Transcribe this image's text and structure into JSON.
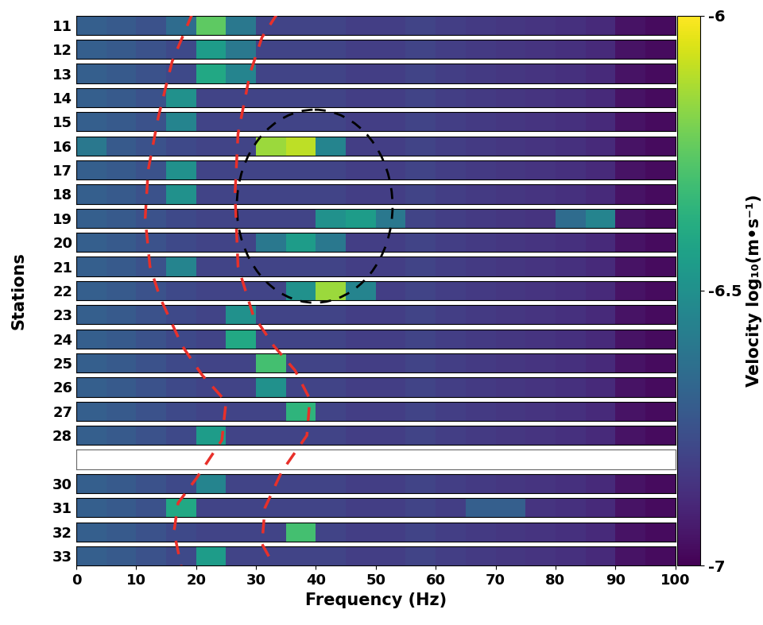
{
  "chart_data": {
    "type": "heatmap",
    "x_label": "Frequency (Hz)",
    "y_label": "Stations",
    "xlim": [
      0,
      100
    ],
    "xticks": [
      0,
      10,
      20,
      30,
      40,
      50,
      60,
      70,
      80,
      90,
      100
    ],
    "stations": [
      11,
      12,
      13,
      14,
      15,
      16,
      17,
      18,
      19,
      20,
      21,
      22,
      23,
      24,
      25,
      26,
      27,
      28,
      null,
      30,
      31,
      32,
      33
    ],
    "frequency_bins": [
      0,
      5,
      10,
      15,
      20,
      25,
      30,
      35,
      40,
      45,
      50,
      55,
      60,
      65,
      70,
      75,
      80,
      85,
      90,
      95,
      100
    ],
    "cells": [
      [
        -6.7,
        -6.72,
        -6.75,
        -6.65,
        -6.25,
        -6.6,
        -6.8,
        -6.8,
        -6.8,
        -6.82,
        -6.82,
        -6.8,
        -6.82,
        -6.83,
        -6.84,
        -6.85,
        -6.86,
        -6.88,
        -6.95,
        -6.97
      ],
      [
        -6.7,
        -6.72,
        -6.75,
        -6.78,
        -6.45,
        -6.6,
        -6.8,
        -6.8,
        -6.8,
        -6.82,
        -6.82,
        -6.8,
        -6.82,
        -6.83,
        -6.84,
        -6.85,
        -6.86,
        -6.88,
        -6.95,
        -6.97
      ],
      [
        -6.7,
        -6.72,
        -6.75,
        -6.78,
        -6.4,
        -6.55,
        -6.8,
        -6.8,
        -6.8,
        -6.82,
        -6.82,
        -6.8,
        -6.82,
        -6.83,
        -6.84,
        -6.85,
        -6.86,
        -6.88,
        -6.95,
        -6.97
      ],
      [
        -6.7,
        -6.72,
        -6.75,
        -6.5,
        -6.8,
        -6.8,
        -6.8,
        -6.8,
        -6.8,
        -6.82,
        -6.82,
        -6.8,
        -6.82,
        -6.83,
        -6.84,
        -6.85,
        -6.86,
        -6.88,
        -6.95,
        -6.97
      ],
      [
        -6.7,
        -6.72,
        -6.75,
        -6.55,
        -6.8,
        -6.8,
        -6.8,
        -6.8,
        -6.8,
        -6.82,
        -6.82,
        -6.8,
        -6.82,
        -6.83,
        -6.84,
        -6.85,
        -6.86,
        -6.88,
        -6.95,
        -6.97
      ],
      [
        -6.6,
        -6.72,
        -6.75,
        -6.78,
        -6.8,
        -6.8,
        -6.15,
        -6.1,
        -6.55,
        -6.82,
        -6.82,
        -6.8,
        -6.82,
        -6.83,
        -6.84,
        -6.85,
        -6.86,
        -6.88,
        -6.95,
        -6.97
      ],
      [
        -6.7,
        -6.72,
        -6.75,
        -6.5,
        -6.8,
        -6.8,
        -6.8,
        -6.8,
        -6.8,
        -6.82,
        -6.82,
        -6.8,
        -6.82,
        -6.83,
        -6.84,
        -6.85,
        -6.86,
        -6.88,
        -6.95,
        -6.97
      ],
      [
        -6.7,
        -6.72,
        -6.75,
        -6.5,
        -6.8,
        -6.8,
        -6.8,
        -6.8,
        -6.8,
        -6.82,
        -6.82,
        -6.8,
        -6.82,
        -6.83,
        -6.84,
        -6.85,
        -6.86,
        -6.88,
        -6.95,
        -6.97
      ],
      [
        -6.7,
        -6.72,
        -6.75,
        -6.78,
        -6.8,
        -6.8,
        -6.8,
        -6.8,
        -6.5,
        -6.45,
        -6.6,
        -6.8,
        -6.82,
        -6.83,
        -6.84,
        -6.85,
        -6.65,
        -6.55,
        -6.95,
        -6.97
      ],
      [
        -6.7,
        -6.72,
        -6.75,
        -6.78,
        -6.8,
        -6.8,
        -6.6,
        -6.45,
        -6.6,
        -6.82,
        -6.82,
        -6.8,
        -6.82,
        -6.83,
        -6.84,
        -6.85,
        -6.86,
        -6.88,
        -6.95,
        -6.97
      ],
      [
        -6.7,
        -6.72,
        -6.75,
        -6.55,
        -6.8,
        -6.8,
        -6.8,
        -6.8,
        -6.8,
        -6.82,
        -6.82,
        -6.8,
        -6.82,
        -6.83,
        -6.84,
        -6.85,
        -6.86,
        -6.88,
        -6.95,
        -6.97
      ],
      [
        -6.7,
        -6.72,
        -6.75,
        -6.78,
        -6.8,
        -6.8,
        -6.8,
        -6.5,
        -6.15,
        -6.55,
        -6.82,
        -6.8,
        -6.82,
        -6.83,
        -6.84,
        -6.85,
        -6.86,
        -6.88,
        -6.95,
        -6.97
      ],
      [
        -6.7,
        -6.72,
        -6.75,
        -6.78,
        -6.8,
        -6.5,
        -6.8,
        -6.8,
        -6.8,
        -6.82,
        -6.82,
        -6.8,
        -6.82,
        -6.83,
        -6.84,
        -6.85,
        -6.86,
        -6.88,
        -6.95,
        -6.97
      ],
      [
        -6.7,
        -6.72,
        -6.75,
        -6.78,
        -6.8,
        -6.4,
        -6.8,
        -6.8,
        -6.8,
        -6.82,
        -6.82,
        -6.8,
        -6.82,
        -6.83,
        -6.84,
        -6.85,
        -6.86,
        -6.88,
        -6.95,
        -6.97
      ],
      [
        -6.7,
        -6.72,
        -6.75,
        -6.78,
        -6.8,
        -6.8,
        -6.3,
        -6.8,
        -6.8,
        -6.82,
        -6.82,
        -6.8,
        -6.82,
        -6.83,
        -6.84,
        -6.85,
        -6.86,
        -6.88,
        -6.95,
        -6.97
      ],
      [
        -6.7,
        -6.72,
        -6.75,
        -6.78,
        -6.8,
        -6.8,
        -6.5,
        -6.8,
        -6.8,
        -6.82,
        -6.82,
        -6.8,
        -6.82,
        -6.83,
        -6.84,
        -6.85,
        -6.86,
        -6.88,
        -6.95,
        -6.97
      ],
      [
        -6.7,
        -6.72,
        -6.75,
        -6.78,
        -6.8,
        -6.8,
        -6.8,
        -6.35,
        -6.8,
        -6.82,
        -6.82,
        -6.8,
        -6.82,
        -6.83,
        -6.84,
        -6.85,
        -6.86,
        -6.88,
        -6.95,
        -6.97
      ],
      [
        -6.7,
        -6.72,
        -6.75,
        -6.78,
        -6.45,
        -6.8,
        -6.8,
        -6.8,
        -6.8,
        -6.82,
        -6.82,
        -6.8,
        -6.82,
        -6.83,
        -6.84,
        -6.85,
        -6.86,
        -6.88,
        -6.95,
        -6.97
      ],
      null,
      [
        -6.7,
        -6.72,
        -6.75,
        -6.78,
        -6.55,
        -6.8,
        -6.8,
        -6.8,
        -6.8,
        -6.82,
        -6.82,
        -6.8,
        -6.82,
        -6.83,
        -6.84,
        -6.85,
        -6.86,
        -6.88,
        -6.95,
        -6.97
      ],
      [
        -6.7,
        -6.72,
        -6.75,
        -6.4,
        -6.8,
        -6.8,
        -6.8,
        -6.8,
        -6.8,
        -6.82,
        -6.82,
        -6.8,
        -6.82,
        -6.7,
        -6.7,
        -6.85,
        -6.86,
        -6.88,
        -6.95,
        -6.97
      ],
      [
        -6.7,
        -6.72,
        -6.75,
        -6.78,
        -6.8,
        -6.8,
        -6.8,
        -6.3,
        -6.8,
        -6.82,
        -6.82,
        -6.8,
        -6.82,
        -6.83,
        -6.84,
        -6.85,
        -6.86,
        -6.88,
        -6.95,
        -6.97
      ],
      [
        -6.7,
        -6.72,
        -6.75,
        -6.78,
        -6.45,
        -6.8,
        -6.8,
        -6.8,
        -6.8,
        -6.82,
        -6.82,
        -6.8,
        -6.82,
        -6.83,
        -6.84,
        -6.85,
        -6.86,
        -6.88,
        -6.95,
        -6.97
      ]
    ],
    "colorbar": {
      "label": "Velocity log₁₀(m•s⁻¹)",
      "range": [
        -7,
        -6
      ],
      "ticks": [
        -6,
        -6.5,
        -7
      ]
    },
    "red_curves": [
      [
        [
          19.4,
          10.5
        ],
        [
          16,
          12.5
        ],
        [
          13.7,
          14.8
        ],
        [
          12,
          17
        ],
        [
          11.5,
          19
        ],
        [
          12.3,
          21
        ],
        [
          14,
          22.3
        ],
        [
          17.7,
          24.3
        ],
        [
          21,
          25.5
        ],
        [
          25,
          26.6
        ],
        [
          24.3,
          28.2
        ],
        [
          20,
          29.8
        ],
        [
          17,
          30.8
        ],
        [
          16.3,
          32
        ],
        [
          17.5,
          33.4
        ]
      ],
      [
        [
          33.6,
          10.5
        ],
        [
          31,
          11.5
        ],
        [
          29,
          13
        ],
        [
          27,
          15.5
        ],
        [
          26.5,
          18
        ],
        [
          27,
          21
        ],
        [
          29.5,
          23
        ],
        [
          33,
          24.3
        ],
        [
          36.5,
          25.3
        ],
        [
          39,
          26.5
        ],
        [
          38.5,
          28
        ],
        [
          34.3,
          29.5
        ],
        [
          31.5,
          31
        ],
        [
          31,
          32.5
        ],
        [
          33,
          33.4
        ]
      ]
    ],
    "black_ellipse": {
      "center": [
        39.8,
        18.5
      ],
      "width": 26,
      "height": 8
    }
  }
}
